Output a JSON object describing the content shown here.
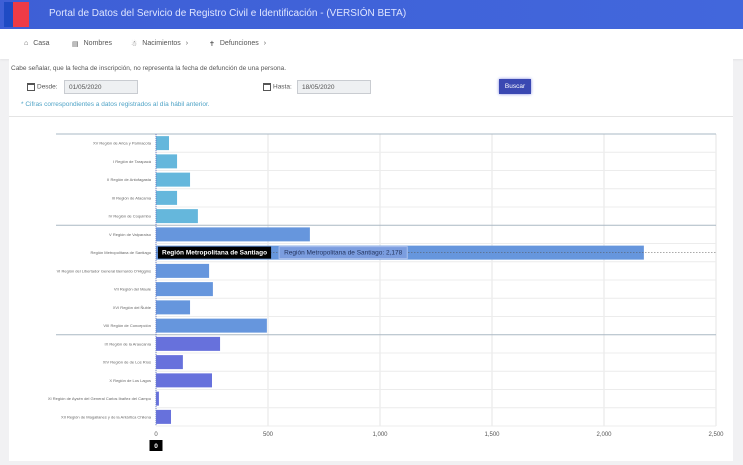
{
  "header": {
    "title": "Portal de Datos del Servicio de Registro Civil e Identificación - (VERSIÓN BETA)"
  },
  "nav": [
    {
      "label": "Casa",
      "icon": "home-icon"
    },
    {
      "label": "Nombres",
      "icon": "id-card-icon"
    },
    {
      "label": "Nacimientos",
      "icon": "baby-icon",
      "chevron": "›"
    },
    {
      "label": "Defunciones",
      "icon": "cross-icon",
      "chevron": "›"
    }
  ],
  "form": {
    "note": "Cabe señalar, que la fecha de inscripción, no representa la fecha de defunción de una persona.",
    "desde_label": "Desde:",
    "desde_value": "01/05/2020",
    "hasta_label": "Hasta:",
    "hasta_value": "18/05/2020",
    "buscar": "Buscar",
    "cifras": "* Cifras correspondientes a datos registrados al día hábil anterior."
  },
  "chart_data": {
    "type": "bar",
    "orientation": "horizontal",
    "xlim": [
      0,
      2500
    ],
    "grid": true,
    "ticks": [
      "0",
      "500",
      "1,000",
      "1,500",
      "2,000",
      "2,500"
    ],
    "categories": [
      "XV Región de Arica y Parinacota",
      "I Región de Tarapacá",
      "II Región de Antofagasta",
      "III Región de Atacama",
      "IV Región de Coquimbo",
      "V Región de Valparaíso",
      "Región Metropolitana de Santiago",
      "VI Región del Libertador General Bernardo O'Higgins",
      "VII Región del Maule",
      "XVI Región del Ñuble",
      "VIII Región de Concepción",
      "IX Región de la Araucanía",
      "XIV Región de de Los Ríos",
      "X Región de Los Lagos",
      "XI Región de Aysén del General Carlos Ibañez del Campo",
      "XII Región de Magallanes y de la Antártica Chilena"
    ],
    "values": [
      58,
      94,
      152,
      94,
      187,
      687,
      2178,
      237,
      254,
      152,
      495,
      286,
      120,
      250,
      13,
      67
    ],
    "groups": [
      0,
      0,
      0,
      0,
      0,
      1,
      1,
      1,
      1,
      1,
      1,
      2,
      2,
      2,
      2,
      2
    ],
    "group_colors": [
      "#65b7dc",
      "#6696dd",
      "#6771dc"
    ],
    "tooltip": "Región Metropolitana de Santiago: 2,178",
    "cursor_label": "Región Metropolitana de Santiago",
    "cursor_x_label": "0"
  }
}
